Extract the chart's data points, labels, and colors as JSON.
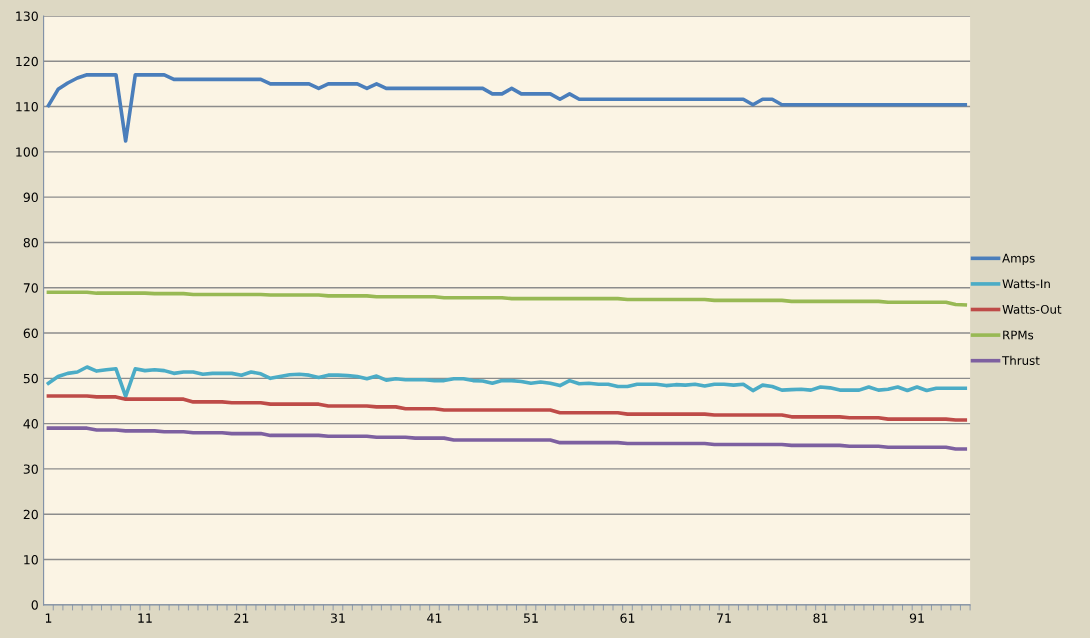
{
  "chart_data": {
    "type": "line",
    "categories": [
      "1",
      null,
      null,
      null,
      null,
      null,
      null,
      null,
      null,
      null,
      "11",
      null,
      null,
      null,
      null,
      null,
      null,
      null,
      null,
      null,
      "21",
      null,
      null,
      null,
      null,
      null,
      null,
      null,
      null,
      null,
      "31",
      null,
      null,
      null,
      null,
      null,
      null,
      null,
      null,
      null,
      "41",
      null,
      null,
      null,
      null,
      null,
      null,
      null,
      null,
      null,
      "51",
      null,
      null,
      null,
      null,
      null,
      null,
      null,
      null,
      null,
      "61",
      null,
      null,
      null,
      null,
      null,
      null,
      null,
      null,
      null,
      "71",
      null,
      null,
      null,
      null,
      null,
      null,
      null,
      null,
      null,
      "81",
      null,
      null,
      null,
      null,
      null,
      null,
      null,
      null,
      null,
      "91",
      null,
      null,
      null,
      null,
      null
    ],
    "series": [
      {
        "name": "Amps",
        "color": "#4a7ebb",
        "values": [
          110.2,
          113.8,
          115.2,
          116.3,
          117,
          117,
          117,
          117,
          102.4,
          117,
          117,
          117,
          117,
          116,
          116,
          116,
          116,
          116,
          116,
          116,
          116,
          116,
          116,
          115,
          115,
          115,
          115,
          115,
          114,
          115,
          115,
          115,
          115,
          114,
          115,
          114,
          114,
          114,
          114,
          114,
          114,
          114,
          114,
          114,
          114,
          114,
          112.8,
          112.8,
          114,
          112.8,
          112.8,
          112.8,
          112.8,
          111.6,
          112.8,
          111.6,
          111.6,
          111.6,
          111.6,
          111.6,
          111.6,
          111.6,
          111.6,
          111.6,
          111.6,
          111.6,
          111.6,
          111.6,
          111.6,
          111.6,
          111.6,
          111.6,
          111.6,
          110.4,
          111.6,
          111.6,
          110.4,
          110.4,
          110.4,
          110.4,
          110.4,
          110.4,
          110.4,
          110.4,
          110.4,
          110.4,
          110.4,
          110.4,
          110.4,
          110.4,
          110.4,
          110.4,
          110.4,
          110.4,
          110.4,
          110.4
        ]
      },
      {
        "name": "Watts-In",
        "color": "#4bacc6",
        "values": [
          48.9,
          50.4,
          51.1,
          51.4,
          52.5,
          51.6,
          51.9,
          52.1,
          46.0,
          52.1,
          51.7,
          51.9,
          51.7,
          51.1,
          51.4,
          51.4,
          50.9,
          51.1,
          51.1,
          51.1,
          50.7,
          51.4,
          51.0,
          50.0,
          50.4,
          50.8,
          50.9,
          50.7,
          50.2,
          50.7,
          50.7,
          50.6,
          50.4,
          49.9,
          50.5,
          49.6,
          49.9,
          49.7,
          49.7,
          49.7,
          49.5,
          49.5,
          49.9,
          49.9,
          49.5,
          49.4,
          48.9,
          49.5,
          49.5,
          49.3,
          48.9,
          49.2,
          48.9,
          48.4,
          49.5,
          48.8,
          48.9,
          48.7,
          48.7,
          48.2,
          48.2,
          48.7,
          48.7,
          48.7,
          48.4,
          48.6,
          48.5,
          48.7,
          48.3,
          48.7,
          48.7,
          48.5,
          48.7,
          47.3,
          48.5,
          48.2,
          47.4,
          47.5,
          47.6,
          47.4,
          48.1,
          47.9,
          47.4,
          47.4,
          47.4,
          48.1,
          47.4,
          47.6,
          48.1,
          47.3,
          48.1,
          47.3,
          47.8,
          47.8,
          47.8,
          47.8
        ]
      },
      {
        "name": "Watts-Out",
        "color": "#be4b48",
        "values": [
          46.1,
          46.1,
          46.1,
          46.1,
          46.1,
          45.9,
          45.9,
          45.9,
          45.4,
          45.4,
          45.4,
          45.4,
          45.4,
          45.4,
          45.4,
          44.8,
          44.8,
          44.8,
          44.8,
          44.6,
          44.6,
          44.6,
          44.6,
          44.3,
          44.3,
          44.3,
          44.3,
          44.3,
          44.3,
          43.9,
          43.9,
          43.9,
          43.9,
          43.9,
          43.7,
          43.7,
          43.7,
          43.3,
          43.3,
          43.3,
          43.3,
          43.0,
          43.0,
          43.0,
          43.0,
          43.0,
          43.0,
          43.0,
          43.0,
          43.0,
          43.0,
          43.0,
          43.0,
          42.4,
          42.4,
          42.4,
          42.4,
          42.4,
          42.4,
          42.4,
          42.1,
          42.1,
          42.1,
          42.1,
          42.1,
          42.1,
          42.1,
          42.1,
          42.1,
          41.9,
          41.9,
          41.9,
          41.9,
          41.9,
          41.9,
          41.9,
          41.9,
          41.5,
          41.5,
          41.5,
          41.5,
          41.5,
          41.5,
          41.3,
          41.3,
          41.3,
          41.3,
          41.0,
          41.0,
          41.0,
          41.0,
          41.0,
          41.0,
          41.0,
          40.8,
          40.8
        ]
      },
      {
        "name": "RPMs",
        "color": "#98b954",
        "values": [
          69.0,
          69.0,
          69.0,
          69.0,
          69.0,
          68.8,
          68.8,
          68.8,
          68.8,
          68.8,
          68.8,
          68.7,
          68.7,
          68.7,
          68.7,
          68.5,
          68.5,
          68.5,
          68.5,
          68.5,
          68.5,
          68.5,
          68.5,
          68.4,
          68.4,
          68.4,
          68.4,
          68.4,
          68.4,
          68.2,
          68.2,
          68.2,
          68.2,
          68.2,
          68.0,
          68.0,
          68.0,
          68.0,
          68.0,
          68.0,
          68.0,
          67.8,
          67.8,
          67.8,
          67.8,
          67.8,
          67.8,
          67.8,
          67.6,
          67.6,
          67.6,
          67.6,
          67.6,
          67.6,
          67.6,
          67.6,
          67.6,
          67.6,
          67.6,
          67.6,
          67.4,
          67.4,
          67.4,
          67.4,
          67.4,
          67.4,
          67.4,
          67.4,
          67.4,
          67.2,
          67.2,
          67.2,
          67.2,
          67.2,
          67.2,
          67.2,
          67.2,
          67.0,
          67.0,
          67.0,
          67.0,
          67.0,
          67.0,
          67.0,
          67.0,
          67.0,
          67.0,
          66.8,
          66.8,
          66.8,
          66.8,
          66.8,
          66.8,
          66.8,
          66.3,
          66.2
        ]
      },
      {
        "name": "Thrust",
        "color": "#7d60a0",
        "values": [
          39.0,
          39.0,
          39.0,
          39.0,
          39.0,
          38.6,
          38.6,
          38.6,
          38.4,
          38.4,
          38.4,
          38.4,
          38.2,
          38.2,
          38.2,
          38.0,
          38.0,
          38.0,
          38.0,
          37.8,
          37.8,
          37.8,
          37.8,
          37.4,
          37.4,
          37.4,
          37.4,
          37.4,
          37.4,
          37.2,
          37.2,
          37.2,
          37.2,
          37.2,
          37.0,
          37.0,
          37.0,
          37.0,
          36.8,
          36.8,
          36.8,
          36.8,
          36.4,
          36.4,
          36.4,
          36.4,
          36.4,
          36.4,
          36.4,
          36.4,
          36.4,
          36.4,
          36.4,
          35.8,
          35.8,
          35.8,
          35.8,
          35.8,
          35.8,
          35.8,
          35.6,
          35.6,
          35.6,
          35.6,
          35.6,
          35.6,
          35.6,
          35.6,
          35.6,
          35.4,
          35.4,
          35.4,
          35.4,
          35.4,
          35.4,
          35.4,
          35.4,
          35.2,
          35.2,
          35.2,
          35.2,
          35.2,
          35.2,
          35.0,
          35.0,
          35.0,
          35.0,
          34.8,
          34.8,
          34.8,
          34.8,
          34.8,
          34.8,
          34.8,
          34.4,
          34.4
        ]
      }
    ],
    "ylim": [
      0,
      130
    ],
    "yticks": [
      0,
      10,
      20,
      30,
      40,
      50,
      60,
      70,
      80,
      90,
      100,
      110,
      120,
      130
    ],
    "grid": "y",
    "legend": "right",
    "marker": "none",
    "line_style": "solid"
  }
}
